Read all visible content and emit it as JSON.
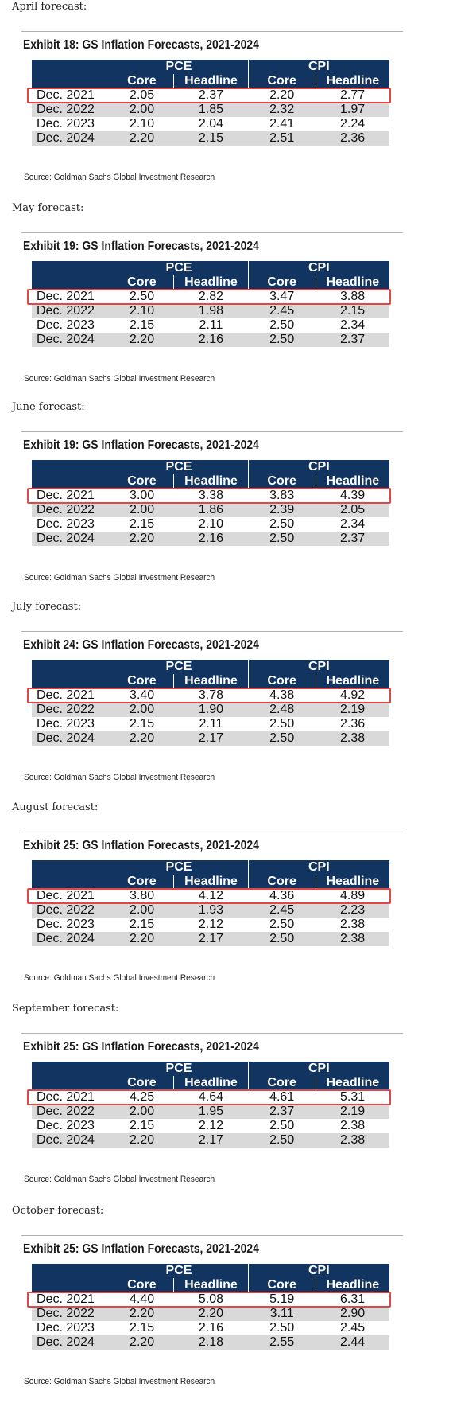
{
  "header_labels": {
    "pce": "PCE",
    "cpi": "CPI",
    "core": "Core",
    "headline": "Headline"
  },
  "forecasts": [
    {
      "label": "April forecast:",
      "exhibit": "Exhibit 18: GS Inflation Forecasts, 2021-2024",
      "source": "Source: Goldman Sachs Global Investment Research",
      "rows": [
        [
          "Dec. 2021",
          "2.05",
          "2.37",
          "2.20",
          "2.77"
        ],
        [
          "Dec. 2022",
          "2.00",
          "1.85",
          "2.32",
          "1.97"
        ],
        [
          "Dec. 2023",
          "2.10",
          "2.04",
          "2.41",
          "2.24"
        ],
        [
          "Dec. 2024",
          "2.20",
          "2.15",
          "2.51",
          "2.36"
        ]
      ]
    },
    {
      "label": "May forecast:",
      "exhibit": "Exhibit 19: GS Inflation Forecasts, 2021-2024",
      "source": "Source: Goldman Sachs Global Investment Research",
      "rows": [
        [
          "Dec. 2021",
          "2.50",
          "2.82",
          "3.47",
          "3.88"
        ],
        [
          "Dec. 2022",
          "2.10",
          "1.98",
          "2.45",
          "2.15"
        ],
        [
          "Dec. 2023",
          "2.15",
          "2.11",
          "2.50",
          "2.34"
        ],
        [
          "Dec. 2024",
          "2.20",
          "2.16",
          "2.50",
          "2.37"
        ]
      ]
    },
    {
      "label": "June forecast:",
      "exhibit": "Exhibit 19: GS Inflation Forecasts, 2021-2024",
      "source": "Source: Goldman Sachs Global Investment Research",
      "rows": [
        [
          "Dec. 2021",
          "3.00",
          "3.38",
          "3.83",
          "4.39"
        ],
        [
          "Dec. 2022",
          "2.00",
          "1.86",
          "2.39",
          "2.05"
        ],
        [
          "Dec. 2023",
          "2.15",
          "2.10",
          "2.50",
          "2.34"
        ],
        [
          "Dec. 2024",
          "2.20",
          "2.16",
          "2.50",
          "2.37"
        ]
      ]
    },
    {
      "label": "July forecast:",
      "exhibit": "Exhibit 24: GS Inflation Forecasts, 2021-2024",
      "source": "Source: Goldman Sachs Global Investment Research",
      "rows": [
        [
          "Dec. 2021",
          "3.40",
          "3.78",
          "4.38",
          "4.92"
        ],
        [
          "Dec. 2022",
          "2.00",
          "1.90",
          "2.48",
          "2.19"
        ],
        [
          "Dec. 2023",
          "2.15",
          "2.11",
          "2.50",
          "2.36"
        ],
        [
          "Dec. 2024",
          "2.20",
          "2.17",
          "2.50",
          "2.38"
        ]
      ]
    },
    {
      "label": "August forecast:",
      "exhibit": "Exhibit 25: GS Inflation Forecasts, 2021-2024",
      "source": "Source: Goldman Sachs Global Investment Research",
      "rows": [
        [
          "Dec. 2021",
          "3.80",
          "4.12",
          "4.36",
          "4.89"
        ],
        [
          "Dec. 2022",
          "2.00",
          "1.93",
          "2.45",
          "2.23"
        ],
        [
          "Dec. 2023",
          "2.15",
          "2.12",
          "2.50",
          "2.38"
        ],
        [
          "Dec. 2024",
          "2.20",
          "2.17",
          "2.50",
          "2.38"
        ]
      ]
    },
    {
      "label": "September forecast:",
      "exhibit": "Exhibit 25: GS Inflation Forecasts, 2021-2024",
      "source": "Source: Goldman Sachs Global Investment Research",
      "rows": [
        [
          "Dec. 2021",
          "4.25",
          "4.64",
          "4.61",
          "5.31"
        ],
        [
          "Dec. 2022",
          "2.00",
          "1.95",
          "2.37",
          "2.19"
        ],
        [
          "Dec. 2023",
          "2.15",
          "2.12",
          "2.50",
          "2.38"
        ],
        [
          "Dec. 2024",
          "2.20",
          "2.17",
          "2.50",
          "2.38"
        ]
      ]
    },
    {
      "label": "October forecast:",
      "exhibit": "Exhibit 25: GS Inflation Forecasts, 2021-2024",
      "source": "Source: Goldman Sachs Global Investment Research",
      "rows": [
        [
          "Dec. 2021",
          "4.40",
          "5.08",
          "5.19",
          "6.31"
        ],
        [
          "Dec. 2022",
          "2.20",
          "2.20",
          "3.11",
          "2.90"
        ],
        [
          "Dec. 2023",
          "2.15",
          "2.16",
          "2.50",
          "2.45"
        ],
        [
          "Dec. 2024",
          "2.20",
          "2.18",
          "2.55",
          "2.44"
        ]
      ]
    }
  ]
}
